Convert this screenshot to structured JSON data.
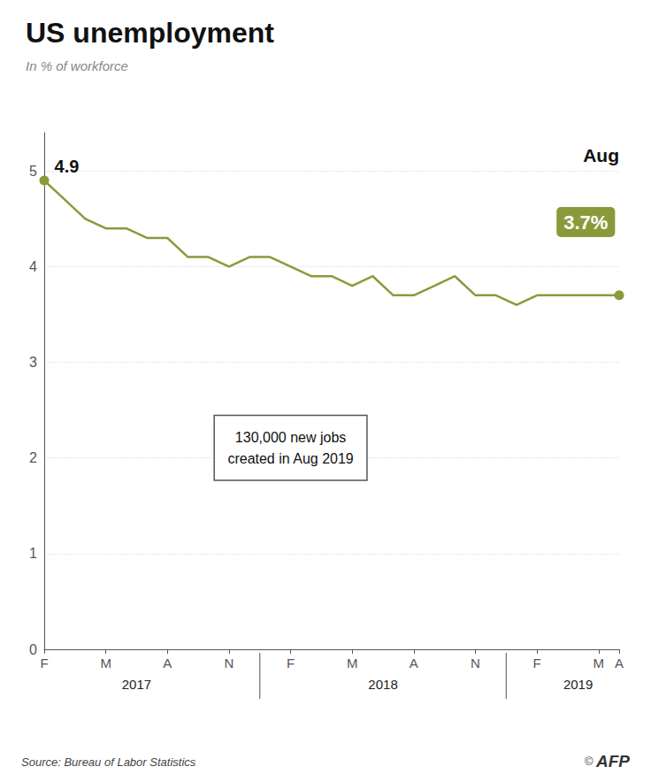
{
  "chart_data": {
    "type": "line",
    "title": "US unemployment",
    "subtitle": "In % of workforce",
    "categories": [
      "F",
      null,
      null,
      "M",
      null,
      null,
      "A",
      null,
      null,
      "N",
      null,
      null,
      "F",
      null,
      null,
      "M",
      null,
      null,
      "A",
      null,
      null,
      "N",
      null,
      null,
      "F",
      null,
      null,
      "M",
      "A"
    ],
    "values": [
      4.9,
      4.7,
      4.5,
      4.4,
      4.4,
      4.3,
      4.3,
      4.1,
      4.1,
      4.0,
      4.1,
      4.1,
      4.0,
      3.9,
      3.9,
      3.8,
      3.9,
      3.7,
      3.7,
      3.8,
      3.9,
      3.7,
      3.7,
      3.6,
      3.7,
      3.7,
      3.7,
      3.7,
      3.7
    ],
    "color": "#8a9a3a",
    "ylim": [
      0,
      5.4
    ],
    "yticks": [
      0,
      1,
      2,
      3,
      4,
      5
    ],
    "grid": true,
    "year_labels": [
      "2017",
      "2018",
      "2019"
    ],
    "first_value_label": "4.9",
    "last_label": "Aug",
    "last_value_label": "3.7%",
    "annotation": "130,000 new jobs\ncreated in Aug 2019",
    "source": "Source: Bureau of Labor Statistics",
    "copyright": "©",
    "credit": "AFP"
  }
}
